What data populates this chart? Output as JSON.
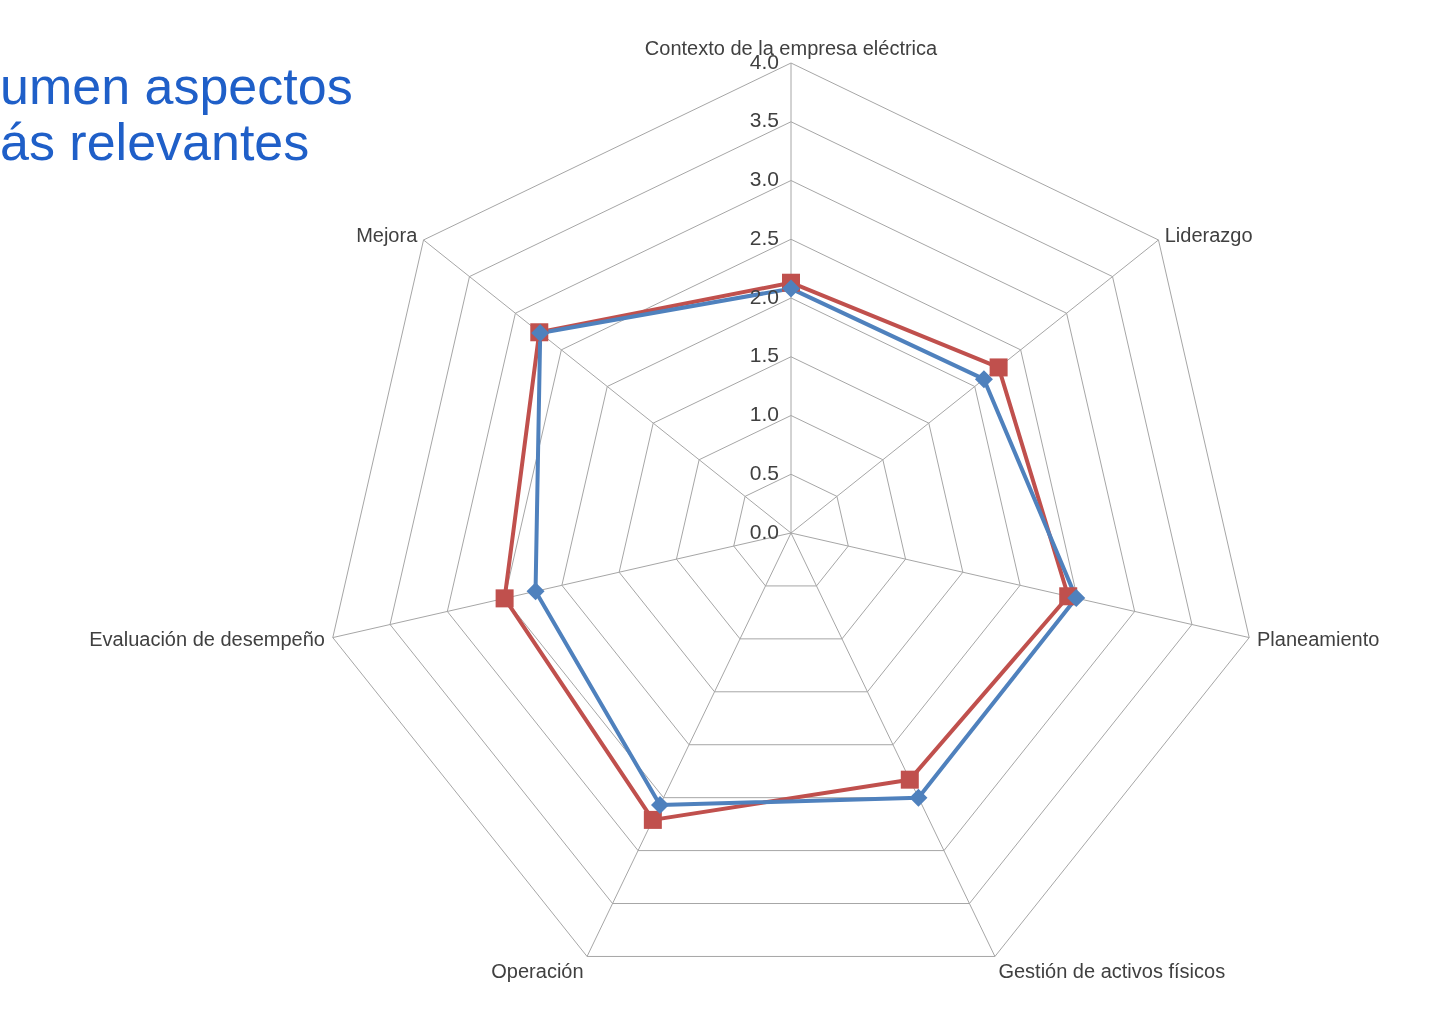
{
  "chart_data": {
    "type": "radar",
    "title": "umen aspectos\nás relevantes",
    "categories": [
      "Contexto de la empresa eléctrica",
      "Liderazgo",
      "Planeamiento",
      "Gestión de activos físicos",
      "Operación",
      "Evaluación de desempeño",
      "Mejora"
    ],
    "series": [
      {
        "color": "#4f81bd",
        "marker": "diamond",
        "values": [
          2.08,
          2.1,
          2.49,
          2.5,
          2.57,
          2.23,
          2.73
        ]
      },
      {
        "color": "#c0504d",
        "marker": "square",
        "values": [
          2.13,
          2.26,
          2.42,
          2.33,
          2.71,
          2.5,
          2.74
        ]
      }
    ],
    "ylim": [
      0,
      4
    ],
    "yticks": [
      {
        "value": 0,
        "label": "0.0"
      },
      {
        "value": 0.5,
        "label": "0.5"
      },
      {
        "value": 1,
        "label": "1.0"
      },
      {
        "value": 1.5,
        "label": "1.5"
      },
      {
        "value": 2,
        "label": "2.0"
      },
      {
        "value": 2.5,
        "label": "2.5"
      },
      {
        "value": 3,
        "label": "3.0"
      },
      {
        "value": 3.5,
        "label": "3.5"
      },
      {
        "value": 4,
        "label": "4.0"
      }
    ],
    "grid": true,
    "legend": false
  }
}
